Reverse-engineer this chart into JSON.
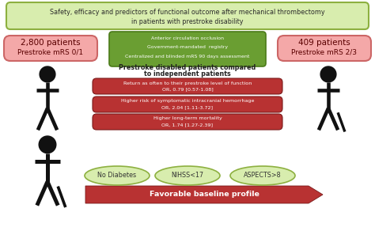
{
  "title_line1": "Safety, efficacy and predictors of functional outcome after mechanical thrombectomy",
  "title_line2": "in patients with prestroke disability",
  "title_bg": "#d8edae",
  "title_border": "#8db040",
  "green_box_lines": [
    "Anterior circulation occlusion",
    "Government-mandated  registry",
    "Centralized and blinded mRS 90 days assessment"
  ],
  "green_box_bg": "#6a9e32",
  "green_box_border": "#4a7a18",
  "left_box_bg": "#f4a8a8",
  "left_box_border": "#cc6666",
  "left_box_line1": "2,800 patients",
  "left_box_line2": "Prestroke mRS 0/1",
  "right_box_bg": "#f4a8a8",
  "right_box_border": "#cc6666",
  "right_box_line1": "409 patients",
  "right_box_line2": "Prestroke mRS 2/3",
  "compare_line1": "Prestroke disabled patients compared",
  "compare_line2": "to independent patients",
  "red_boxes": [
    [
      "Return as often to their prestroke level of function",
      "OR, 0.79 [0.57-1.08]"
    ],
    [
      "Higher risk of symptomatic intracranial hemorrhage",
      "OR, 2.04 [1.11-3.72]"
    ],
    [
      "Higher long-term mortality",
      "OR, 1.74 [1.27-2.39]"
    ]
  ],
  "red_box_bg": "#b83232",
  "red_box_border": "#7a1a1a",
  "oval_labels": [
    "No Diabetes",
    "NIHSS<17",
    "ASPECTS>8"
  ],
  "oval_bg": "#d8edae",
  "oval_border": "#8db040",
  "arrow_text": "Favorable baseline profile",
  "arrow_color": "#b83232",
  "arrow_text_color": "#ffffff",
  "bg_color": "#ffffff",
  "person_color": "#111111"
}
